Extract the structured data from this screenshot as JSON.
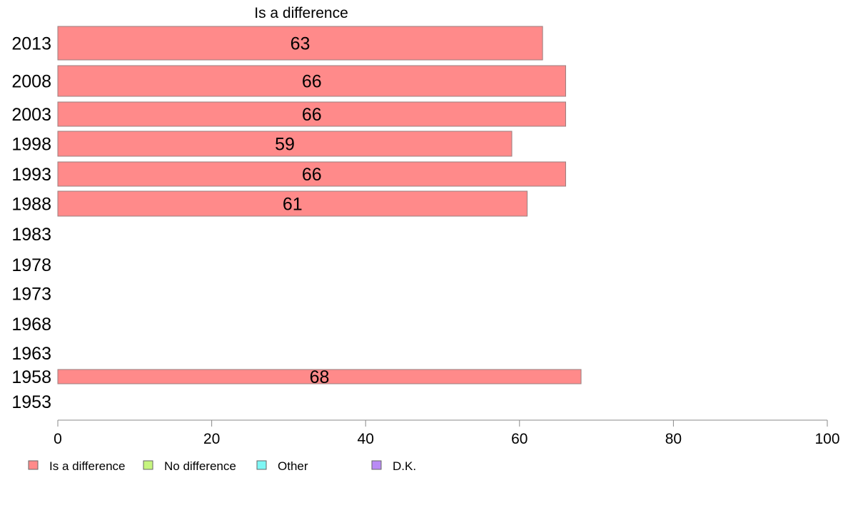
{
  "chart_data": {
    "type": "bar",
    "orientation": "horizontal",
    "title": "Is a difference",
    "xlabel": "",
    "ylabel": "",
    "xlim": [
      0,
      100
    ],
    "xticks": [
      "0",
      "20",
      "40",
      "60",
      "80",
      "100"
    ],
    "grid": false,
    "legend_placement": "bottom-left",
    "categories": [
      "2013",
      "2008",
      "2003",
      "1998",
      "1993",
      "1988",
      "1983",
      "1978",
      "1973",
      "1968",
      "1963",
      "1958",
      "1953"
    ],
    "series": [
      {
        "name": "Is a difference",
        "color": "#ff8a8a",
        "values": [
          63,
          66,
          66,
          59,
          66,
          61,
          null,
          null,
          null,
          null,
          null,
          68,
          null
        ],
        "labels": [
          "63",
          "66",
          "66",
          "59",
          "66",
          "61",
          "",
          "",
          "",
          "",
          "",
          "68",
          ""
        ]
      }
    ],
    "legend": [
      {
        "label": "Is a difference",
        "color": "#ff8a8a"
      },
      {
        "label": "No difference",
        "color": "#c6f57e"
      },
      {
        "label": "Other",
        "color": "#7ef7f5"
      },
      {
        "label": "D.K.",
        "color": "#b98af5"
      }
    ]
  }
}
